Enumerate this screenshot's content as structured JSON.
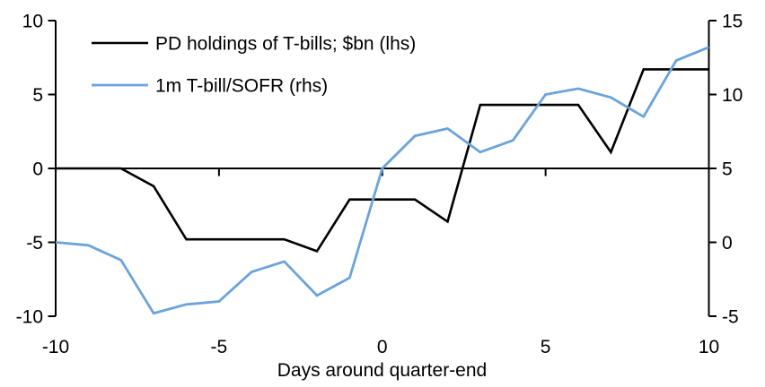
{
  "chart_data": {
    "type": "line",
    "title": "",
    "xlabel": "Days around quarter-end",
    "grid": false,
    "legend_position": "top-left",
    "x": [
      -10,
      -9,
      -8,
      -7,
      -6,
      -5,
      -4,
      -3,
      -2,
      -1,
      0,
      1,
      2,
      3,
      4,
      5,
      6,
      7,
      8,
      9,
      10
    ],
    "x_ticks": [
      -10,
      -5,
      0,
      5,
      10
    ],
    "x_minor_ticks_on_zero_line": [
      -5,
      0,
      5
    ],
    "left_axis": {
      "ticks": [
        10,
        5,
        0,
        -5,
        -10
      ],
      "ylim": [
        -10,
        10
      ]
    },
    "right_axis": {
      "ticks": [
        15,
        10,
        5,
        0,
        -5
      ],
      "ylim": [
        -5,
        15
      ]
    },
    "axis_color": "#000000",
    "series": [
      {
        "name": "PD holdings of T-bills; $bn (lhs)",
        "axis": "left",
        "color": "#000000",
        "values": [
          0,
          0,
          0,
          -1.2,
          -4.8,
          -4.8,
          -4.8,
          -4.8,
          -5.6,
          -2.1,
          -2.1,
          -2.1,
          -3.6,
          4.3,
          4.3,
          4.3,
          4.3,
          1.1,
          6.7,
          6.7,
          6.7
        ]
      },
      {
        "name": "1m T-bill/SOFR (rhs)",
        "axis": "right",
        "color": "#6BA3DA",
        "values": [
          0,
          -0.2,
          -1.2,
          -4.8,
          -4.2,
          -4,
          -2,
          -1.3,
          -3.6,
          -2.4,
          5,
          7.2,
          7.7,
          6.1,
          6.9,
          10,
          10.4,
          9.8,
          8.5,
          12.3,
          13.2
        ]
      }
    ]
  }
}
